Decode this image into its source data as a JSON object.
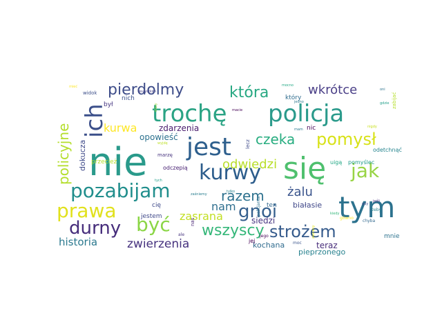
{
  "word_cloud": {
    "words": [
      {
        "text": "nie",
        "color": "#2a9a8b"
      },
      {
        "text": "się",
        "color": "#4fc06e"
      },
      {
        "text": "trochę",
        "color": "#2aa384"
      },
      {
        "text": "policja",
        "color": "#2a9a8b"
      },
      {
        "text": "jest",
        "color": "#2e5f8d"
      },
      {
        "text": "tym",
        "color": "#2c728e"
      },
      {
        "text": "ich",
        "color": "#3b4f8a"
      },
      {
        "text": "jak",
        "color": "#98d445"
      },
      {
        "text": "kurwy",
        "color": "#2d5d8c"
      },
      {
        "text": "pozabijam",
        "color": "#208e8c"
      },
      {
        "text": "prawa",
        "color": "#e1e11d"
      },
      {
        "text": "gnoi",
        "color": "#355f8d"
      },
      {
        "text": "strożem",
        "color": "#365b8c"
      },
      {
        "text": "być",
        "color": "#8bd646"
      },
      {
        "text": "durny",
        "color": "#462d7b"
      },
      {
        "text": "pomysł",
        "color": "#d8e219"
      },
      {
        "text": "pierdolmy",
        "color": "#3d4c89"
      },
      {
        "text": "która",
        "color": "#27a882"
      },
      {
        "text": "wkrótce",
        "color": "#4a3f87"
      },
      {
        "text": "policyjne",
        "color": "#b4de2c"
      },
      {
        "text": "czeka",
        "color": "#28ad80"
      },
      {
        "text": "odwiedzi",
        "color": "#b8de29"
      },
      {
        "text": "razem",
        "color": "#2d718e"
      },
      {
        "text": "nam",
        "color": "#2e6e8e"
      },
      {
        "text": "wszyscy",
        "color": "#35b779"
      },
      {
        "text": "zasrana",
        "color": "#c2df23"
      },
      {
        "text": "żalu",
        "color": "#3a548c"
      },
      {
        "text": "kurwa",
        "color": "#fde725"
      },
      {
        "text": "zwierzenia",
        "color": "#46327e"
      },
      {
        "text": "historia",
        "color": "#2a788e"
      },
      {
        "text": "opowieść",
        "color": "#2c718e"
      },
      {
        "text": "zdarzenia",
        "color": "#481a6c"
      },
      {
        "text": "dokucza",
        "color": "#3e4989"
      },
      {
        "text": "przecież",
        "color": "#b5de2b"
      },
      {
        "text": "siedzi",
        "color": "#463480"
      },
      {
        "text": "białasie",
        "color": "#3f4788"
      },
      {
        "text": "teraz",
        "color": "#472c7a"
      },
      {
        "text": "kochana",
        "color": "#2f6b8e"
      },
      {
        "text": "pieprzonego",
        "color": "#26818e"
      },
      {
        "text": "mnie",
        "color": "#2c728e"
      },
      {
        "text": "jestem",
        "color": "#3f4889"
      },
      {
        "text": "cię",
        "color": "#3e4989"
      },
      {
        "text": "odczepią",
        "color": "#482173"
      },
      {
        "text": "marzę",
        "color": "#46337e"
      },
      {
        "text": "nich",
        "color": "#3b518b"
      },
      {
        "text": "był",
        "color": "#453581"
      },
      {
        "text": "widok",
        "color": "#3c4f8a"
      },
      {
        "text": "wszystkim",
        "color": "#433e85"
      },
      {
        "text": "który",
        "color": "#2f6c8e"
      },
      {
        "text": "nic",
        "color": "#440154"
      },
      {
        "text": "mam",
        "color": "#2a788e"
      },
      {
        "text": "lecz",
        "color": "#3e4a89"
      },
      {
        "text": "pomyślec",
        "color": "#1e9b8a"
      },
      {
        "text": "uigą",
        "color": "#22a785"
      },
      {
        "text": "odetchnąć",
        "color": "#25848e"
      },
      {
        "text": "zabijać",
        "color": "#b5de2b"
      },
      {
        "text": "ten",
        "color": "#31678e"
      },
      {
        "text": "jej",
        "color": "#440154"
      },
      {
        "text": "ale",
        "color": "#46337e"
      },
      {
        "text": "żeby",
        "color": "#26828e"
      },
      {
        "text": "gówno",
        "color": "#fde725"
      },
      {
        "text": "chyba",
        "color": "#31688e"
      },
      {
        "text": "moc",
        "color": "#3a548c"
      },
      {
        "text": "zasrany",
        "color": "#e5e419"
      },
      {
        "text": "policjanta",
        "color": "#2d708e"
      },
      {
        "text": "jego",
        "color": "#440154"
      },
      {
        "text": "mocno",
        "color": "#22a884"
      },
      {
        "text": "macie",
        "color": "#440154"
      },
      {
        "text": "zaśniemy",
        "color": "#287d8e"
      },
      {
        "text": "tylko",
        "color": "#26828e"
      },
      {
        "text": "jedno",
        "color": "#2a788e"
      },
      {
        "text": "tych",
        "color": "#1f9e89"
      },
      {
        "text": "stary",
        "color": "#a0da39"
      },
      {
        "text": "gdy",
        "color": "#3e4a89"
      },
      {
        "text": "jeśli",
        "color": "#472f7d"
      },
      {
        "text": "kiedy",
        "color": "#35b779"
      },
      {
        "text": "nas",
        "color": "#482475"
      },
      {
        "text": "mieć",
        "color": "#fde725"
      },
      {
        "text": "nigdy",
        "color": "#c8e020"
      },
      {
        "text": "oni",
        "color": "#2c728e"
      },
      {
        "text": "gdzie",
        "color": "#1f9e89"
      },
      {
        "text": "wyjdę",
        "color": "#bddf26"
      }
    ]
  }
}
